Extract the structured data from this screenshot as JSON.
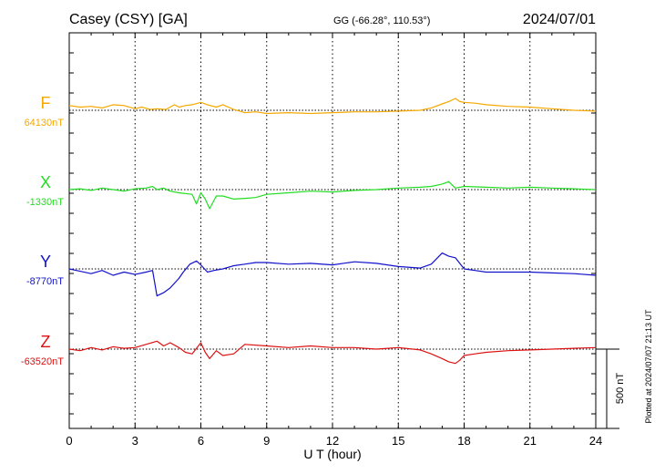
{
  "header": {
    "station": "Casey (CSY)  [GA]",
    "coords": "GG (-66.28°, 110.53°)",
    "date": "2024/07/01"
  },
  "footer": {
    "plotted_note": "Plotted at 2024/07/07 21:13 UT"
  },
  "chart_data": {
    "type": "line",
    "xlabel": "U T (hour)",
    "xlim": [
      0,
      24
    ],
    "xticks": [
      "0",
      "3",
      "6",
      "9",
      "12",
      "15",
      "18",
      "21",
      "24"
    ],
    "scale_bar_label": "500 nT",
    "scale_bar_nT": 500,
    "grid": "vertical dotted every 3 hours",
    "series": [
      {
        "name": "F",
        "baseline_label": "64130nT",
        "color": "#f5a800",
        "x": [
          0,
          0.5,
          1,
          1.5,
          2,
          2.5,
          3,
          3.3,
          3.7,
          4,
          4.4,
          4.8,
          5,
          5.3,
          5.6,
          6,
          6.3,
          6.7,
          7,
          7.5,
          8,
          8.5,
          9,
          10,
          11,
          12,
          13,
          14,
          15,
          16,
          16.5,
          17,
          17.3,
          17.6,
          17.8,
          18,
          18.5,
          19,
          20,
          21,
          22,
          23,
          24
        ],
        "values": [
          30,
          20,
          25,
          15,
          35,
          30,
          10,
          20,
          5,
          10,
          5,
          35,
          20,
          30,
          35,
          50,
          35,
          20,
          35,
          5,
          -15,
          -10,
          -20,
          -15,
          -20,
          -15,
          -10,
          -10,
          -5,
          0,
          15,
          40,
          55,
          75,
          55,
          50,
          45,
          35,
          25,
          20,
          10,
          0,
          -5
        ]
      },
      {
        "name": "X",
        "baseline_label": "-1330nT",
        "color": "#22dd22",
        "x": [
          0,
          0.5,
          1,
          1.5,
          2,
          2.5,
          3,
          3.5,
          3.8,
          4,
          4.3,
          4.6,
          5,
          5.3,
          5.6,
          5.8,
          6,
          6.2,
          6.4,
          6.7,
          7,
          7.5,
          8,
          8.5,
          9,
          10,
          11,
          12,
          13,
          14,
          15,
          16,
          16.5,
          17,
          17.3,
          17.6,
          18,
          19,
          20,
          21,
          22,
          23,
          24
        ],
        "values": [
          0,
          5,
          -5,
          10,
          0,
          -10,
          5,
          10,
          20,
          0,
          10,
          -10,
          -20,
          -25,
          -30,
          -90,
          -20,
          -60,
          -120,
          -40,
          -40,
          -60,
          -55,
          -50,
          -30,
          -20,
          -10,
          -15,
          -5,
          0,
          10,
          15,
          20,
          35,
          50,
          10,
          20,
          15,
          10,
          15,
          10,
          5,
          0
        ]
      },
      {
        "name": "Y",
        "baseline_label": "-8770nT",
        "color": "#1111cc",
        "x": [
          0,
          0.5,
          1,
          1.5,
          2,
          2.5,
          3,
          3.5,
          3.8,
          4,
          4.3,
          4.6,
          5,
          5.2,
          5.5,
          5.8,
          6,
          6.3,
          6.6,
          7,
          7.5,
          8,
          8.5,
          9,
          10,
          11,
          12,
          13,
          14,
          15,
          16,
          16.5,
          17,
          17.3,
          17.6,
          18,
          18.5,
          19,
          20,
          21,
          22,
          23,
          24
        ],
        "values": [
          0,
          -15,
          -30,
          -10,
          -40,
          -20,
          -35,
          -20,
          -10,
          -170,
          -150,
          -120,
          -60,
          -20,
          30,
          50,
          25,
          -20,
          -10,
          0,
          20,
          30,
          40,
          40,
          30,
          35,
          25,
          45,
          35,
          15,
          5,
          30,
          100,
          80,
          70,
          0,
          -10,
          -20,
          -20,
          -20,
          -25,
          -30,
          -40
        ]
      },
      {
        "name": "Z",
        "baseline_label": "-63520nT",
        "color": "#dd1111",
        "x": [
          0,
          0.5,
          1,
          1.5,
          2,
          2.5,
          3,
          3.5,
          4,
          4.3,
          4.6,
          5,
          5.3,
          5.6,
          6,
          6.2,
          6.4,
          6.7,
          7,
          7.5,
          8,
          9,
          10,
          11,
          12,
          13,
          14,
          15,
          16,
          16.5,
          17,
          17.3,
          17.6,
          17.8,
          18,
          18.5,
          19,
          20,
          21,
          22,
          23,
          24
        ],
        "values": [
          0,
          -10,
          10,
          -5,
          15,
          5,
          10,
          30,
          50,
          20,
          40,
          10,
          -20,
          -30,
          40,
          -20,
          -60,
          -10,
          -40,
          -30,
          30,
          20,
          10,
          20,
          10,
          10,
          0,
          10,
          -5,
          -30,
          -60,
          -80,
          -90,
          -70,
          -40,
          -30,
          -20,
          -10,
          -5,
          0,
          5,
          10
        ]
      }
    ]
  }
}
